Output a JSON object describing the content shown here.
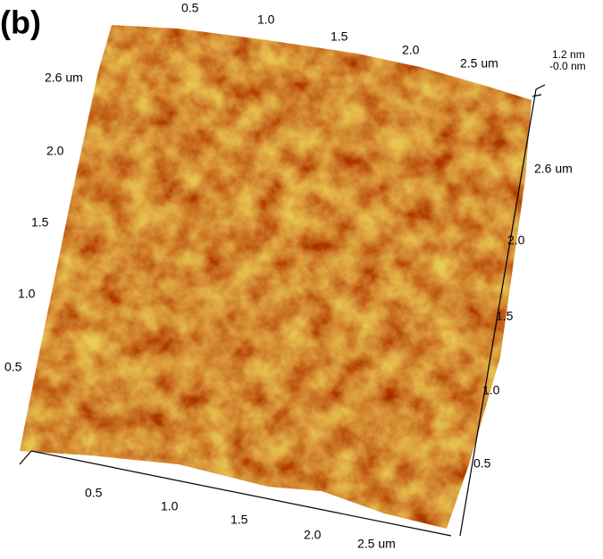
{
  "panel_label": "(b)",
  "top_axis": {
    "ticks": [
      "0.5",
      "1.0",
      "1.5",
      "2.0",
      "2.5 um"
    ]
  },
  "z_axis": {
    "ticks": [
      "1.2 nm",
      "-0.0 nm"
    ]
  },
  "left_axis": {
    "ticks": [
      "2.6 um",
      "2.0",
      "1.5",
      "1.0",
      "0.5"
    ]
  },
  "right_axis": {
    "ticks": [
      "2.6 um",
      "2.0",
      "1.5",
      "1.0",
      "0.5"
    ]
  },
  "bottom_axis": {
    "ticks": [
      "0.5",
      "1.0",
      "1.5",
      "2.0",
      "2.5 um"
    ]
  }
}
